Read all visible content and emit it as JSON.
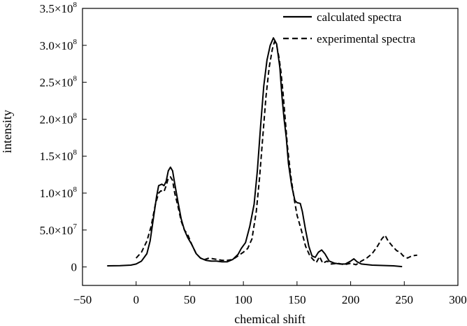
{
  "chart_data": {
    "type": "line",
    "title": "",
    "xlabel": "chemical shift",
    "ylabel": "intensity",
    "xlim": [
      -50,
      300
    ],
    "ylim": [
      -25000000,
      350000000
    ],
    "x_ticks": [
      -50,
      0,
      50,
      100,
      150,
      200,
      250,
      300
    ],
    "x_tick_labels": [
      "−50",
      "0",
      "50",
      "100",
      "150",
      "200",
      "250",
      "300"
    ],
    "y_ticks": [
      {
        "value": 0,
        "mantissa": "0",
        "exponent": ""
      },
      {
        "value": 50000000,
        "mantissa": "5.0×10",
        "exponent": "7"
      },
      {
        "value": 100000000,
        "mantissa": "1.0×10",
        "exponent": "8"
      },
      {
        "value": 150000000,
        "mantissa": "1.5×10",
        "exponent": "8"
      },
      {
        "value": 200000000,
        "mantissa": "2.0×10",
        "exponent": "8"
      },
      {
        "value": 250000000,
        "mantissa": "2.5×10",
        "exponent": "8"
      },
      {
        "value": 300000000,
        "mantissa": "3.0×10",
        "exponent": "8"
      },
      {
        "value": 350000000,
        "mantissa": "3.5×10",
        "exponent": "8"
      }
    ],
    "legend_position": "top-right",
    "series": [
      {
        "name": "calculated spectra",
        "style": "solid",
        "points": [
          [
            -27,
            1500000
          ],
          [
            -15,
            1700000
          ],
          [
            -5,
            2500000
          ],
          [
            0,
            4000000
          ],
          [
            5,
            8000000
          ],
          [
            10,
            18000000
          ],
          [
            13,
            35000000
          ],
          [
            16,
            65000000
          ],
          [
            19,
            95000000
          ],
          [
            21,
            110000000
          ],
          [
            24,
            112000000
          ],
          [
            26,
            110000000
          ],
          [
            28,
            116000000
          ],
          [
            30,
            130000000
          ],
          [
            32,
            135000000
          ],
          [
            34,
            130000000
          ],
          [
            36,
            113000000
          ],
          [
            39,
            88000000
          ],
          [
            42,
            65000000
          ],
          [
            45,
            50000000
          ],
          [
            48,
            40000000
          ],
          [
            52,
            30000000
          ],
          [
            56,
            18000000
          ],
          [
            60,
            12000000
          ],
          [
            65,
            9000000
          ],
          [
            70,
            8000000
          ],
          [
            75,
            8000000
          ],
          [
            80,
            7000000
          ],
          [
            85,
            7000000
          ],
          [
            90,
            10000000
          ],
          [
            95,
            17000000
          ],
          [
            98,
            25000000
          ],
          [
            102,
            33000000
          ],
          [
            106,
            55000000
          ],
          [
            110,
            85000000
          ],
          [
            113,
            130000000
          ],
          [
            116,
            190000000
          ],
          [
            119,
            245000000
          ],
          [
            122,
            280000000
          ],
          [
            125,
            300000000
          ],
          [
            128,
            310000000
          ],
          [
            131,
            302000000
          ],
          [
            134,
            270000000
          ],
          [
            136,
            230000000
          ],
          [
            138,
            200000000
          ],
          [
            140,
            175000000
          ],
          [
            142,
            140000000
          ],
          [
            145,
            110000000
          ],
          [
            148,
            90000000
          ],
          [
            150,
            87000000
          ],
          [
            153,
            86000000
          ],
          [
            155,
            75000000
          ],
          [
            158,
            50000000
          ],
          [
            161,
            28000000
          ],
          [
            164,
            15000000
          ],
          [
            167,
            13000000
          ],
          [
            170,
            20000000
          ],
          [
            173,
            23000000
          ],
          [
            176,
            18000000
          ],
          [
            180,
            8000000
          ],
          [
            185,
            5000000
          ],
          [
            190,
            4000000
          ],
          [
            195,
            4000000
          ],
          [
            200,
            8000000
          ],
          [
            203,
            11000000
          ],
          [
            206,
            7000000
          ],
          [
            210,
            4000000
          ],
          [
            220,
            2500000
          ],
          [
            230,
            2000000
          ],
          [
            240,
            1500000
          ],
          [
            248,
            500000
          ]
        ]
      },
      {
        "name": "experimental spectra",
        "style": "dashed",
        "points": [
          [
            0,
            12000000
          ],
          [
            5,
            20000000
          ],
          [
            10,
            35000000
          ],
          [
            14,
            55000000
          ],
          [
            18,
            85000000
          ],
          [
            21,
            100000000
          ],
          [
            23,
            103000000
          ],
          [
            26,
            102000000
          ],
          [
            28,
            110000000
          ],
          [
            30,
            120000000
          ],
          [
            32,
            122000000
          ],
          [
            34,
            117000000
          ],
          [
            36,
            100000000
          ],
          [
            39,
            82000000
          ],
          [
            42,
            62000000
          ],
          [
            45,
            50000000
          ],
          [
            48,
            44000000
          ],
          [
            52,
            30000000
          ],
          [
            56,
            18000000
          ],
          [
            60,
            12000000
          ],
          [
            64,
            10000000
          ],
          [
            68,
            12000000
          ],
          [
            72,
            11000000
          ],
          [
            76,
            10000000
          ],
          [
            80,
            9000000
          ],
          [
            85,
            9000000
          ],
          [
            90,
            10000000
          ],
          [
            95,
            15000000
          ],
          [
            100,
            20000000
          ],
          [
            104,
            25000000
          ],
          [
            108,
            38000000
          ],
          [
            112,
            75000000
          ],
          [
            115,
            120000000
          ],
          [
            118,
            175000000
          ],
          [
            121,
            230000000
          ],
          [
            124,
            270000000
          ],
          [
            127,
            295000000
          ],
          [
            129,
            305000000
          ],
          [
            131,
            300000000
          ],
          [
            133,
            285000000
          ],
          [
            135,
            265000000
          ],
          [
            137,
            235000000
          ],
          [
            139,
            200000000
          ],
          [
            141,
            165000000
          ],
          [
            144,
            125000000
          ],
          [
            147,
            95000000
          ],
          [
            150,
            70000000
          ],
          [
            154,
            50000000
          ],
          [
            158,
            28000000
          ],
          [
            162,
            15000000
          ],
          [
            165,
            10000000
          ],
          [
            168,
            6000000
          ],
          [
            171,
            14000000
          ],
          [
            174,
            5000000
          ],
          [
            178,
            8000000
          ],
          [
            182,
            4000000
          ],
          [
            188,
            5000000
          ],
          [
            194,
            3000000
          ],
          [
            200,
            5000000
          ],
          [
            205,
            3000000
          ],
          [
            210,
            8000000
          ],
          [
            215,
            12000000
          ],
          [
            220,
            18000000
          ],
          [
            225,
            28000000
          ],
          [
            229,
            38000000
          ],
          [
            232,
            43000000
          ],
          [
            235,
            35000000
          ],
          [
            239,
            28000000
          ],
          [
            243,
            22000000
          ],
          [
            246,
            20000000
          ],
          [
            249,
            15000000
          ],
          [
            253,
            12000000
          ],
          [
            257,
            15000000
          ],
          [
            262,
            16000000
          ]
        ]
      }
    ]
  }
}
